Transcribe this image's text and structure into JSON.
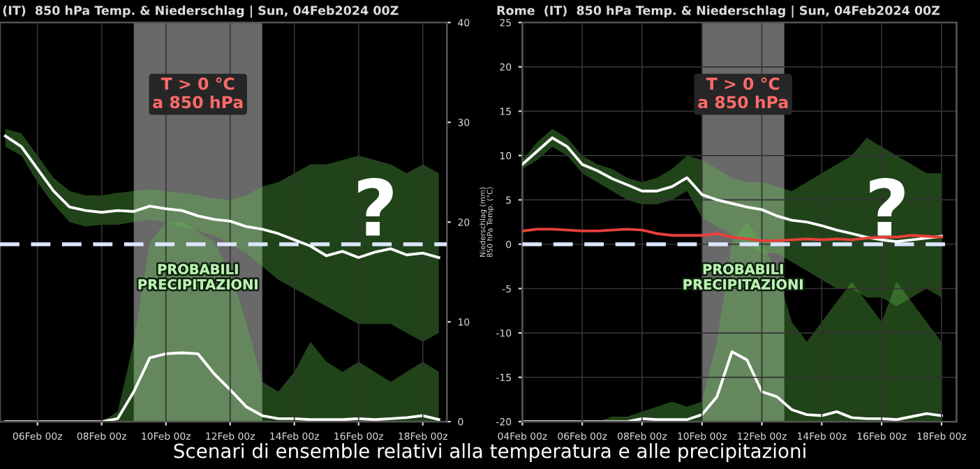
{
  "chart_data": [
    {
      "type": "line",
      "title": "(IT)  850 hPa Temp. & Niederschlag | Sun, 04Feb2024 00Z",
      "x": [
        "2024-02-05T00:00",
        "2024-02-05T12:00",
        "2024-02-06T00:00",
        "2024-02-06T12:00",
        "2024-02-07T00:00",
        "2024-02-07T12:00",
        "2024-02-08T00:00",
        "2024-02-08T12:00",
        "2024-02-09T00:00",
        "2024-02-09T12:00",
        "2024-02-10T00:00",
        "2024-02-10T12:00",
        "2024-02-11T00:00",
        "2024-02-11T12:00",
        "2024-02-12T00:00",
        "2024-02-12T12:00",
        "2024-02-13T00:00",
        "2024-02-13T12:00",
        "2024-02-14T00:00",
        "2024-02-14T12:00",
        "2024-02-15T00:00",
        "2024-02-15T12:00",
        "2024-02-16T00:00",
        "2024-02-16T12:00",
        "2024-02-17T00:00",
        "2024-02-17T12:00",
        "2024-02-18T00:00",
        "2024-02-18T12:00"
      ],
      "series": [
        {
          "color": "#ffffff",
          "values": [
            12.2,
            11,
            8.5,
            6,
            4.2,
            3.8,
            3.6,
            3.8,
            3.7,
            4.3,
            4.0,
            3.8,
            3.2,
            2.8,
            2.6,
            2.0,
            1.7,
            1.2,
            0.5,
            -0.2,
            -1.3,
            -0.8,
            -1.5,
            -0.9,
            -0.5,
            -1.2,
            -1.0,
            -1.5
          ],
          "lower": [
            11,
            10,
            7,
            4.5,
            2.5,
            2,
            2.2,
            2.2,
            2.5,
            2.8,
            2.5,
            2,
            1.5,
            1,
            0,
            -1,
            -2.5,
            -4,
            -5,
            -6,
            -7,
            -8,
            -9,
            -9,
            -9,
            -10,
            -11,
            -10
          ],
          "upper": [
            13,
            12.5,
            10,
            7.5,
            6,
            5.5,
            5.5,
            5.8,
            6,
            6.2,
            6,
            5.8,
            5.5,
            5.2,
            5,
            5.5,
            6.5,
            7,
            8,
            9,
            9,
            9.5,
            10,
            9.5,
            9,
            8,
            9,
            8
          ]
        },
        {
          "color": "#ffffff",
          "axis": "y2",
          "values": [
            0,
            0,
            0,
            0,
            0,
            0,
            0,
            0.3,
            3,
            6.4,
            6.8,
            6.9,
            6.8,
            4.8,
            3.2,
            1.5,
            0.6,
            0.3,
            0.3,
            0.2,
            0.2,
            0.2,
            0.3,
            0.2,
            0.3,
            0.4,
            0.6,
            0.2
          ],
          "lower": [
            0,
            0,
            0,
            0,
            0,
            0,
            0,
            0,
            0,
            0,
            0,
            0,
            0,
            0,
            0,
            0,
            0,
            0,
            0,
            0,
            0,
            0,
            0,
            0,
            0,
            0,
            0,
            0
          ],
          "upper": [
            0,
            0,
            0,
            0,
            0,
            0,
            0,
            1,
            8,
            18,
            20,
            20,
            19,
            18,
            15,
            10,
            4,
            3,
            5,
            8,
            6,
            5,
            6,
            5,
            4,
            5,
            6,
            5
          ]
        }
      ],
      "xlim": [
        "2024-02-04T20:00",
        "2024-02-18T18:00"
      ],
      "xticks": [
        {
          "value": "2024-02-06",
          "label": "06Feb 00z"
        },
        {
          "value": "2024-02-08",
          "label": "08Feb 00z"
        },
        {
          "value": "2024-02-10",
          "label": "10Feb 00z"
        },
        {
          "value": "2024-02-12",
          "label": "12Feb 00z"
        },
        {
          "value": "2024-02-14",
          "label": "14Feb 00z"
        },
        {
          "value": "2024-02-16",
          "label": "16Feb 00z"
        },
        {
          "value": "2024-02-18",
          "label": "18Feb 00z"
        }
      ],
      "ylim": [
        -20,
        25
      ],
      "y2lim": [
        0,
        40
      ],
      "y2ticks": [
        0,
        10,
        20,
        30,
        40
      ],
      "grid": true,
      "ref_lines": [
        {
          "axis": "y",
          "value": 0,
          "label": null,
          "color": "#dce6ff",
          "line_style": "dashed"
        }
      ],
      "bands": [
        {
          "axis": "x",
          "from": "2024-02-09T00:00",
          "to": "2024-02-13T00:00",
          "label": "T > 0 °C\na 850 hPa",
          "color": "#8c8c8c"
        }
      ],
      "annotations": [
        "PROBABILI\nPRECIPITAZIONI",
        "?",
        "Scenari di ensemble relativi alla temperatura e alle precipitazioni"
      ]
    },
    {
      "type": "line",
      "title": "Rome  (IT)  850 hPa Temp. & Niederschlag | Sun, 04Feb2024 00Z",
      "ylabel": "Niederschlag (mm)\n850 hPa Temp. (°C)",
      "x": [
        "2024-02-04T00:00",
        "2024-02-04T12:00",
        "2024-02-05T00:00",
        "2024-02-05T12:00",
        "2024-02-06T00:00",
        "2024-02-06T12:00",
        "2024-02-07T00:00",
        "2024-02-07T12:00",
        "2024-02-08T00:00",
        "2024-02-08T12:00",
        "2024-02-09T00:00",
        "2024-02-09T12:00",
        "2024-02-10T00:00",
        "2024-02-10T12:00",
        "2024-02-11T00:00",
        "2024-02-11T12:00",
        "2024-02-12T00:00",
        "2024-02-12T12:00",
        "2024-02-13T00:00",
        "2024-02-13T12:00",
        "2024-02-14T00:00",
        "2024-02-14T12:00",
        "2024-02-15T00:00",
        "2024-02-15T12:00",
        "2024-02-16T00:00",
        "2024-02-16T12:00",
        "2024-02-17T00:00",
        "2024-02-17T12:00",
        "2024-02-18T00:00"
      ],
      "series": [
        {
          "color": "#ffffff",
          "values": [
            9.0,
            10.5,
            12.0,
            11.0,
            9.0,
            8.3,
            7.4,
            6.7,
            6.0,
            6.0,
            6.5,
            7.5,
            5.6,
            5.0,
            4.6,
            4.2,
            3.9,
            3.2,
            2.7,
            2.5,
            2.1,
            1.6,
            1.2,
            0.8,
            0.5,
            0.3,
            0.5,
            0.7,
            0.9
          ],
          "lower": [
            8.5,
            9.5,
            11,
            10,
            8,
            7,
            6,
            5,
            4.5,
            4.5,
            5,
            6,
            3,
            2,
            1,
            0,
            -1,
            -1,
            -2,
            -3,
            -4,
            -5,
            -5,
            -6,
            -6,
            -7,
            -6,
            -5,
            -6
          ],
          "upper": [
            9.5,
            11.5,
            13,
            12,
            10,
            9,
            8.5,
            7.5,
            7,
            7.5,
            8.5,
            10,
            9.5,
            8.5,
            7.5,
            7,
            7,
            6.5,
            6,
            7,
            8,
            9,
            10,
            12,
            11,
            10,
            9,
            8,
            8
          ]
        },
        {
          "color": "#e8403a",
          "values": [
            1.5,
            1.7,
            1.7,
            1.6,
            1.5,
            1.5,
            1.6,
            1.7,
            1.6,
            1.2,
            1.0,
            1.0,
            1.0,
            1.2,
            0.8,
            0.6,
            0.4,
            0.4,
            0.5,
            0.6,
            0.5,
            0.6,
            0.5,
            0.7,
            0.8,
            0.8,
            1.0,
            0.9,
            0.8
          ]
        },
        {
          "color": "#ffffff",
          "axis": "y2",
          "values": [
            0,
            0,
            0,
            0,
            0,
            0,
            0,
            0,
            0.3,
            0.2,
            0.2,
            0.2,
            0.7,
            2.5,
            7.0,
            6.2,
            3.0,
            2.5,
            1.2,
            0.7,
            0.6,
            1.0,
            0.4,
            0.3,
            0.3,
            0.2,
            0.5,
            0.8,
            0.6
          ],
          "lower": [
            0,
            0,
            0,
            0,
            0,
            0,
            0,
            0,
            0,
            0,
            0,
            0,
            0,
            0,
            0,
            0,
            0,
            0,
            0,
            0,
            0,
            0,
            0,
            0,
            0,
            0,
            0,
            0,
            0
          ],
          "upper": [
            0,
            0,
            0,
            0,
            0,
            0,
            0.5,
            0.5,
            1,
            1.5,
            2,
            1.5,
            2,
            8,
            18,
            20,
            18,
            15,
            10,
            8,
            10,
            12,
            14,
            12,
            10,
            14,
            12,
            10,
            8
          ]
        }
      ],
      "xlim": [
        "2024-02-04T00:00",
        "2024-02-18T12:00"
      ],
      "xticks": [
        {
          "value": "2024-02-04",
          "label": "04Feb 00z"
        },
        {
          "value": "2024-02-06",
          "label": "06Feb 00z"
        },
        {
          "value": "2024-02-08",
          "label": "08Feb 00z"
        },
        {
          "value": "2024-02-10",
          "label": "10Feb 00z"
        },
        {
          "value": "2024-02-12",
          "label": "12Feb 00z"
        },
        {
          "value": "2024-02-14",
          "label": "14Feb 00z"
        },
        {
          "value": "2024-02-16",
          "label": "16Feb 00z"
        },
        {
          "value": "2024-02-18",
          "label": "18Feb 00z"
        }
      ],
      "ylim": [
        -20,
        25
      ],
      "yticks": [
        -20,
        -15,
        -10,
        -5,
        0,
        5,
        10,
        15,
        20,
        25
      ],
      "y2lim": [
        0,
        40
      ],
      "grid": true,
      "ref_lines": [
        {
          "axis": "y",
          "value": 0,
          "label": null,
          "color": "#dce6ff",
          "line_style": "dashed"
        }
      ],
      "bands": [
        {
          "axis": "x",
          "from": "2024-02-10T00:00",
          "to": "2024-02-12T18:00",
          "label": "T > 0 °C\na 850 hPa",
          "color": "#8c8c8c"
        }
      ],
      "annotations": [
        "PROBABILI\nPRECIPITAZIONI",
        "?"
      ]
    }
  ]
}
